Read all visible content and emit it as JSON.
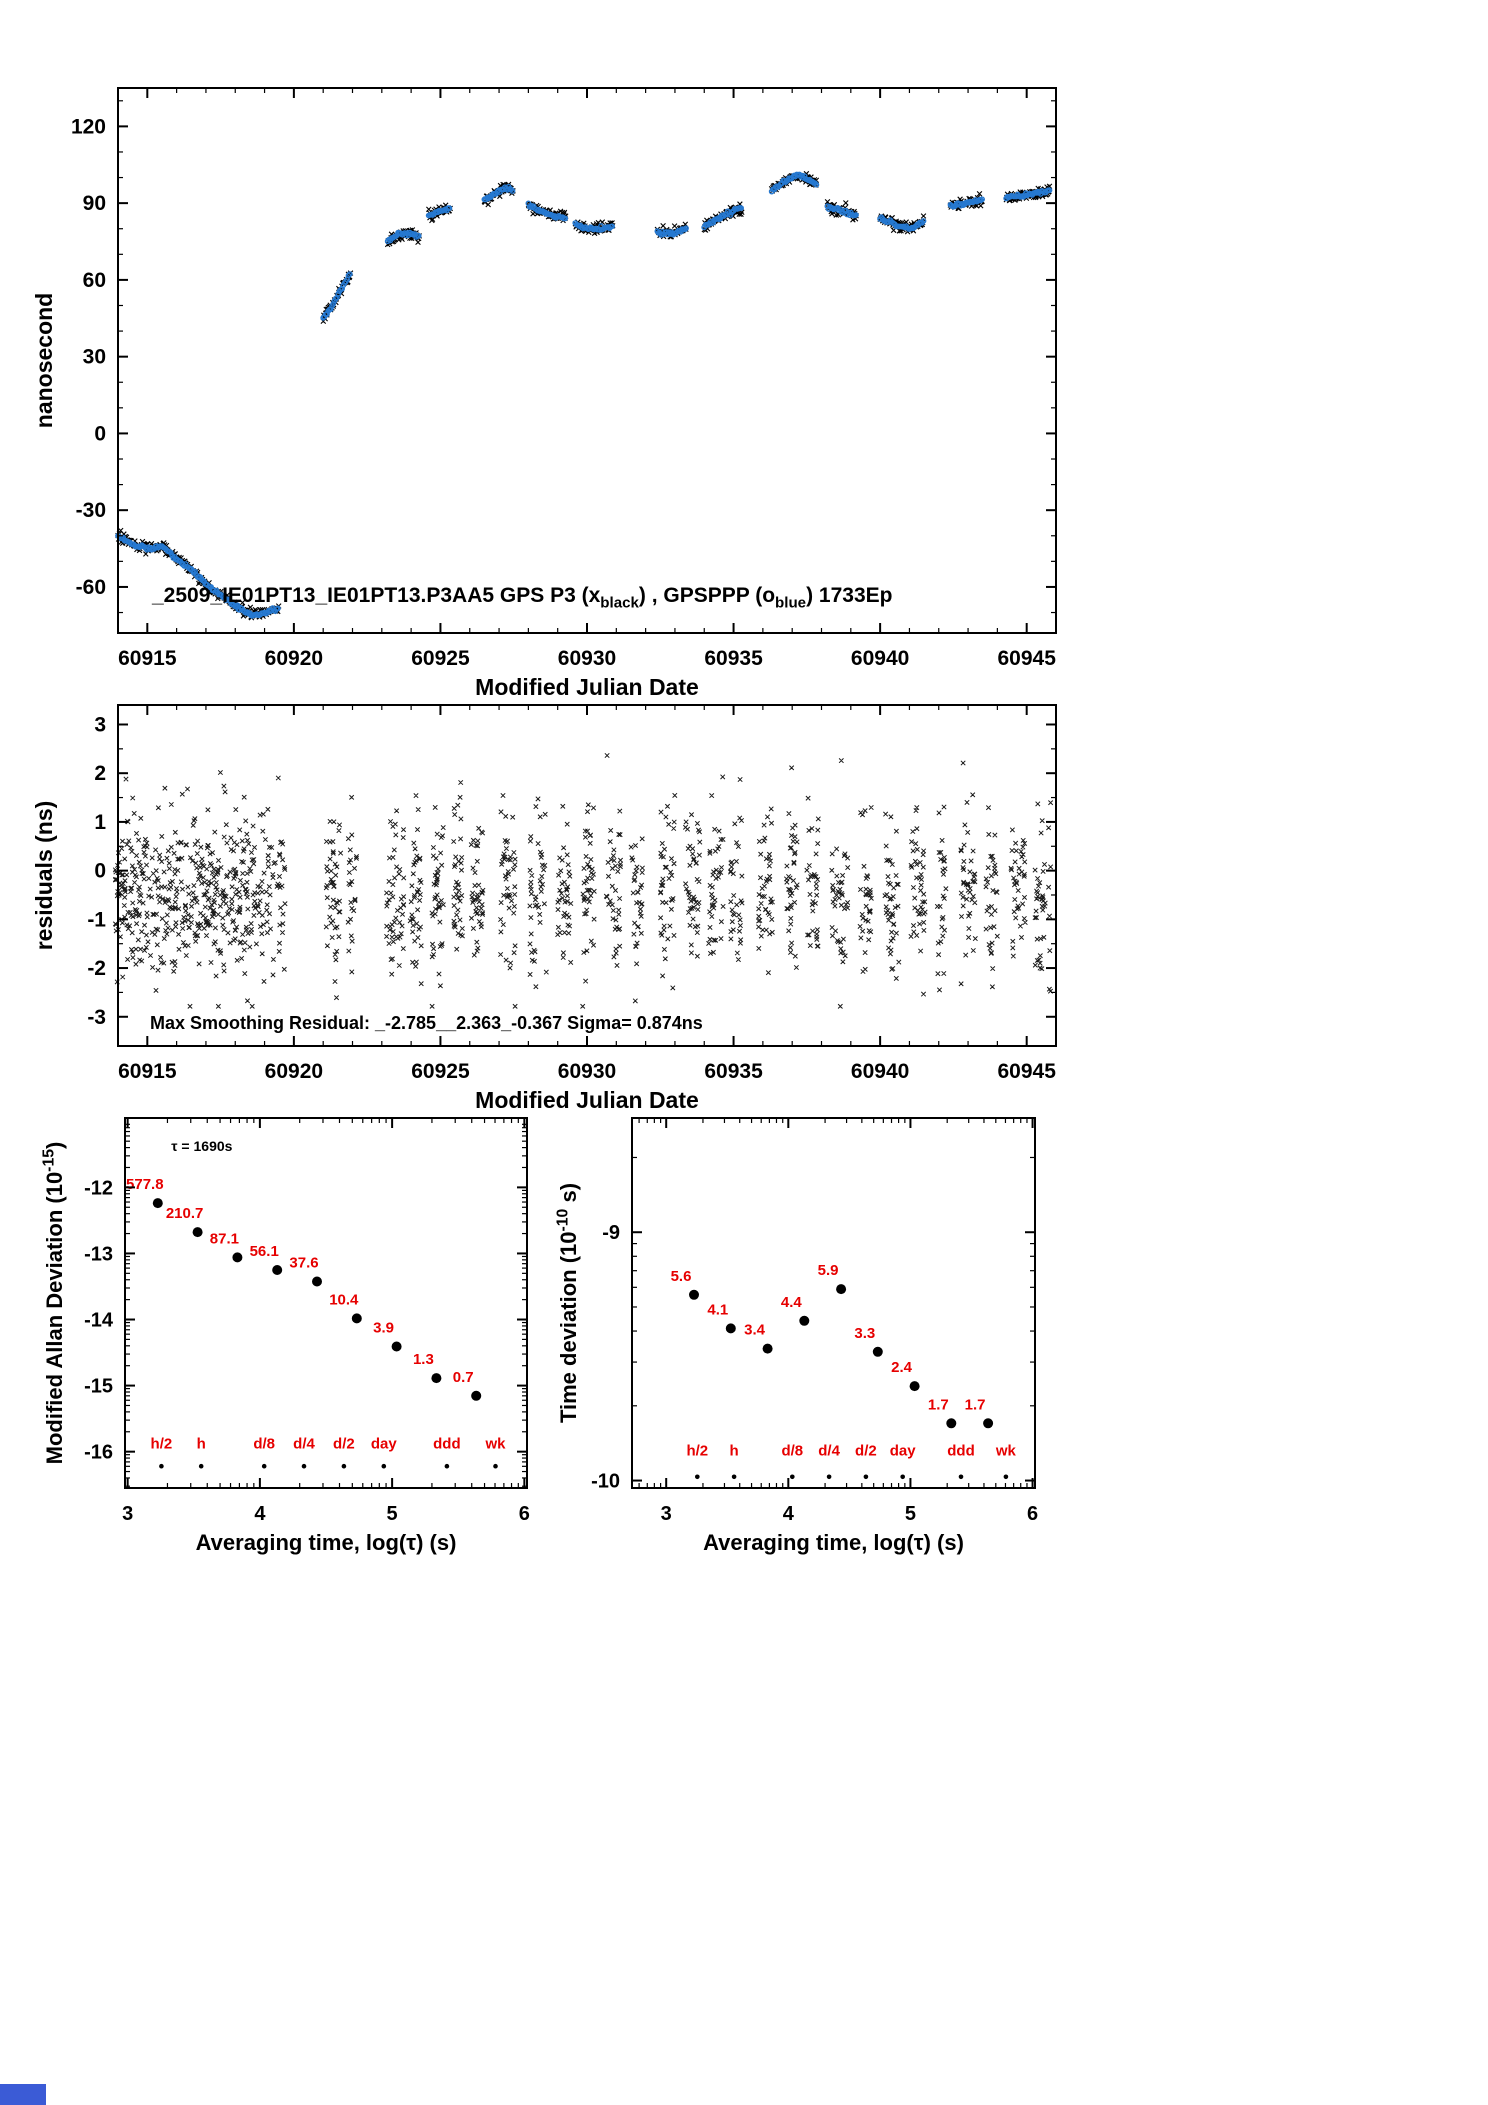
{
  "page": {
    "background": "#ffffff"
  },
  "footer_bar": {
    "color": "#3b5bd6"
  },
  "colors": {
    "black": "#000000",
    "blue": "#2578d0",
    "red": "#e60000"
  },
  "chart_data": [
    {
      "id": "phase",
      "type": "scatter",
      "xlabel": "Modified Julian Date",
      "ylabel": "nanosecond",
      "xlim": [
        60914,
        60946
      ],
      "ylim": [
        -78,
        135
      ],
      "xticks": [
        60915,
        60920,
        60925,
        60930,
        60935,
        60940,
        60945
      ],
      "yticks": [
        -60,
        -30,
        0,
        30,
        60,
        90,
        120
      ],
      "legend_parts": [
        {
          "t": "_2509_IE01PT13_IE01PT13.P3AA5      GPS P3 (x"
        },
        {
          "t": "black",
          "sub": true
        },
        {
          "t": ") ,   GPSPPP (o"
        },
        {
          "t": "blue",
          "sub": true
        },
        {
          "t": ")   1733Ep"
        }
      ],
      "series": [
        {
          "name": "GPS P3",
          "marker": "x",
          "color": "#000000"
        },
        {
          "name": "GPSPPP",
          "marker": "o",
          "color": "#2578d0"
        }
      ],
      "segments": [
        [
          [
            60914.0,
            -40
          ],
          [
            60914.6,
            -44
          ],
          [
            60915.1,
            -45
          ],
          [
            60915.5,
            -44
          ],
          [
            60916.0,
            -49
          ],
          [
            60916.5,
            -53
          ],
          [
            60917.0,
            -59
          ],
          [
            60917.6,
            -64
          ],
          [
            60918.1,
            -68
          ],
          [
            60918.6,
            -71
          ],
          [
            60919.1,
            -70
          ],
          [
            60919.5,
            -68
          ]
        ],
        [
          [
            60921.0,
            45
          ],
          [
            60921.3,
            50
          ],
          [
            60921.6,
            56
          ],
          [
            60921.95,
            63
          ]
        ],
        [
          [
            60923.2,
            75
          ],
          [
            60923.6,
            78
          ],
          [
            60924.0,
            78
          ],
          [
            60924.3,
            77
          ]
        ],
        [
          [
            60924.6,
            85
          ],
          [
            60925.0,
            87
          ],
          [
            60925.35,
            88
          ]
        ],
        [
          [
            60926.5,
            91
          ],
          [
            60926.9,
            94
          ],
          [
            60927.2,
            96
          ],
          [
            60927.5,
            95
          ]
        ],
        [
          [
            60928.0,
            89
          ],
          [
            60928.4,
            87
          ],
          [
            60928.9,
            85
          ],
          [
            60929.3,
            84
          ]
        ],
        [
          [
            60929.6,
            82
          ],
          [
            60930.0,
            80
          ],
          [
            60930.5,
            80
          ],
          [
            60930.9,
            81
          ]
        ],
        [
          [
            60932.4,
            79
          ],
          [
            60932.9,
            78
          ],
          [
            60933.4,
            80
          ]
        ],
        [
          [
            60934.0,
            81
          ],
          [
            60934.5,
            84
          ],
          [
            60935.0,
            87
          ],
          [
            60935.3,
            88
          ]
        ],
        [
          [
            60936.3,
            95
          ],
          [
            60936.8,
            99
          ],
          [
            60937.2,
            101
          ],
          [
            60937.6,
            99
          ],
          [
            60937.85,
            97
          ]
        ],
        [
          [
            60938.2,
            89
          ],
          [
            60938.7,
            87
          ],
          [
            60939.2,
            85
          ]
        ],
        [
          [
            60940.0,
            84
          ],
          [
            60940.5,
            82
          ],
          [
            60941.0,
            80
          ],
          [
            60941.5,
            83
          ]
        ],
        [
          [
            60942.4,
            89
          ],
          [
            60942.9,
            90
          ],
          [
            60943.5,
            91
          ]
        ],
        [
          [
            60944.3,
            92
          ],
          [
            60944.8,
            93
          ],
          [
            60945.3,
            94
          ],
          [
            60945.8,
            95
          ]
        ]
      ]
    },
    {
      "id": "residuals",
      "type": "scatter",
      "xlabel": "Modified Julian Date",
      "ylabel": "residuals (ns)",
      "xlim": [
        60914,
        60946
      ],
      "ylim": [
        -3.6,
        3.4
      ],
      "xticks": [
        60915,
        60920,
        60925,
        60930,
        60935,
        60940,
        60945
      ],
      "yticks": [
        -3,
        -2,
        -1,
        0,
        1,
        2,
        3
      ],
      "annotation": "Max Smoothing Residual: _-2.785__2.363_-0.367  Sigma= 0.874ns",
      "stats": {
        "min": -2.785,
        "max": 2.363,
        "mean": -0.367,
        "sigma_ns": 0.874
      },
      "marker_color": "#1a1a1a",
      "sd": 0.85,
      "clusters": [
        [
          60916.8,
          2.9,
          520,
          -0.45
        ],
        [
          60921.35,
          0.25,
          48,
          -0.55
        ],
        [
          60922.0,
          0.15,
          24,
          -0.6
        ],
        [
          60923.45,
          0.3,
          52,
          -0.5
        ],
        [
          60924.15,
          0.2,
          40,
          -0.35
        ],
        [
          60924.9,
          0.2,
          44,
          -0.5
        ],
        [
          60925.6,
          0.15,
          38,
          -0.3
        ],
        [
          60926.25,
          0.2,
          42,
          -0.55
        ],
        [
          60927.3,
          0.25,
          48,
          -0.35
        ],
        [
          60928.35,
          0.3,
          44,
          -0.6
        ],
        [
          60929.2,
          0.25,
          40,
          -0.5
        ],
        [
          60930.05,
          0.2,
          42,
          -0.35
        ],
        [
          60930.9,
          0.25,
          40,
          -0.55
        ],
        [
          60931.7,
          0.2,
          34,
          -0.45
        ],
        [
          60932.75,
          0.25,
          44,
          -0.55
        ],
        [
          60933.6,
          0.25,
          44,
          -0.4
        ],
        [
          60934.4,
          0.25,
          40,
          -0.55
        ],
        [
          60935.1,
          0.2,
          34,
          -0.4
        ],
        [
          60936.1,
          0.25,
          44,
          -0.45
        ],
        [
          60937.0,
          0.2,
          40,
          -0.3
        ],
        [
          60937.7,
          0.2,
          34,
          -0.45
        ],
        [
          60938.6,
          0.3,
          44,
          -0.6
        ],
        [
          60939.5,
          0.2,
          34,
          -0.55
        ],
        [
          60940.4,
          0.25,
          44,
          -0.45
        ],
        [
          60941.3,
          0.25,
          44,
          -0.4
        ],
        [
          60942.1,
          0.15,
          28,
          -0.5
        ],
        [
          60943.0,
          0.25,
          44,
          -0.35
        ],
        [
          60943.8,
          0.2,
          34,
          -0.45
        ],
        [
          60944.7,
          0.25,
          40,
          -0.5
        ],
        [
          60945.55,
          0.28,
          44,
          -0.55
        ]
      ]
    },
    {
      "id": "mdev",
      "type": "scatter",
      "xlabel_parts": [
        {
          "t": "Averaging time, log(τ) (s)"
        }
      ],
      "ylabel_parts": [
        {
          "t": "Modified Allan Deviation (10"
        },
        {
          "t": "-15",
          "sup": true
        },
        {
          "t": ")"
        }
      ],
      "xlim": [
        2.98,
        6.02
      ],
      "ylim": [
        -16.55,
        -10.95
      ],
      "xticks": [
        3,
        4,
        5,
        6
      ],
      "yticks": [
        -12,
        -13,
        -14,
        -15,
        -16
      ],
      "value_exp": -15,
      "points_x": [
        3.228,
        3.529,
        3.83,
        4.131,
        4.432,
        4.733,
        5.034,
        5.335,
        5.636
      ],
      "values": [
        577.8,
        210.7,
        87.1,
        56.1,
        37.6,
        10.4,
        3.9,
        1.3,
        0.7
      ],
      "value_labels": [
        "577.8",
        "210.7",
        "87.1",
        "56.1",
        "37.6",
        "10.4",
        "3.9",
        "1.3",
        "0.7"
      ],
      "label_color": "#e60000",
      "annotation": {
        "text": "τ = 1690s",
        "x": 3.33,
        "y": -11.45
      },
      "tau_row": {
        "labels": [
          "h/2",
          "h",
          "d/8",
          "d/4",
          "d/2",
          "day",
          "ddd",
          "wk"
        ],
        "x": [
          3.255,
          3.556,
          4.033,
          4.334,
          4.635,
          4.937,
          5.414,
          5.782
        ],
        "label_y": -15.95,
        "dot_y": -16.22,
        "color": "#e60000"
      }
    },
    {
      "id": "tdev",
      "type": "scatter",
      "xlabel_parts": [
        {
          "t": "Averaging time, log(τ) (s)"
        }
      ],
      "ylabel_parts": [
        {
          "t": "Time deviation (10"
        },
        {
          "t": "-10",
          "sup": true
        },
        {
          "t": " s)"
        }
      ],
      "xlim": [
        2.72,
        6.02
      ],
      "ylim": [
        -10.03,
        -8.54
      ],
      "xticks": [
        3,
        4,
        5,
        6
      ],
      "yticks": [
        -9,
        -10
      ],
      "value_exp": -10,
      "points_x": [
        3.228,
        3.529,
        3.83,
        4.131,
        4.432,
        4.733,
        5.034,
        5.335,
        5.636
      ],
      "values": [
        5.6,
        4.1,
        3.4,
        4.4,
        5.9,
        3.3,
        2.4,
        1.7,
        1.7
      ],
      "value_labels": [
        "5.6",
        "4.1",
        "3.4",
        "4.4",
        "5.9",
        "3.3",
        "2.4",
        "1.7",
        "1.7"
      ],
      "label_color": "#e60000",
      "tau_row": {
        "labels": [
          "h/2",
          "h",
          "d/8",
          "d/4",
          "d/2",
          "day",
          "ddd",
          "wk"
        ],
        "x": [
          3.255,
          3.556,
          4.033,
          4.334,
          4.635,
          4.937,
          5.414,
          5.782
        ],
        "label_y": -9.9,
        "dot_y": -9.985,
        "color": "#e60000"
      }
    }
  ]
}
